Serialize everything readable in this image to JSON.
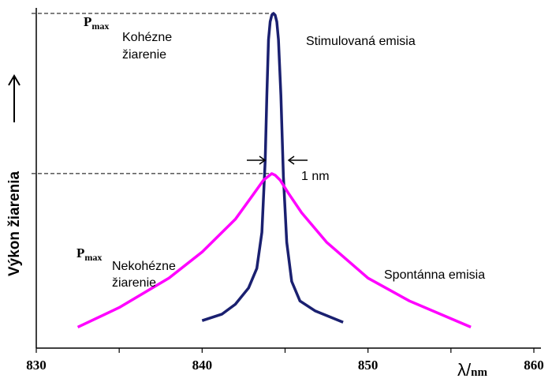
{
  "chart_data": {
    "type": "line",
    "xlim": [
      830,
      860
    ],
    "xticks": [
      "830",
      "840",
      "850",
      "860"
    ],
    "xlabel": "λ/nm",
    "ylabel": "Výkon žiarenia",
    "series": [
      {
        "name": "Stimulovaná emisia",
        "color": "#1a2070",
        "x": [
          840.0,
          841.2,
          842.0,
          842.8,
          843.3,
          843.6,
          843.8,
          843.9,
          844.0,
          844.1,
          844.2,
          844.3,
          844.4,
          844.5,
          844.6,
          844.75,
          844.9,
          845.1,
          845.4,
          845.9,
          846.8,
          848.5
        ],
        "y": [
          0.06,
          0.08,
          0.11,
          0.16,
          0.22,
          0.33,
          0.55,
          0.75,
          0.92,
          0.975,
          0.995,
          1.0,
          0.995,
          0.975,
          0.92,
          0.75,
          0.5,
          0.3,
          0.18,
          0.12,
          0.09,
          0.055
        ]
      },
      {
        "name": "Spontánna emisia",
        "color": "#ff00ff",
        "x": [
          832.5,
          835.0,
          838.0,
          840.0,
          842.0,
          843.0,
          843.7,
          844.2,
          844.4,
          844.7,
          845.2,
          846.0,
          847.5,
          850.0,
          852.5,
          856.2
        ],
        "y": [
          0.04,
          0.1,
          0.19,
          0.27,
          0.37,
          0.44,
          0.49,
          0.51,
          0.505,
          0.49,
          0.45,
          0.39,
          0.3,
          0.19,
          0.12,
          0.04
        ]
      }
    ],
    "annotations": {
      "pmax_main": "P",
      "pmax_sub": "max",
      "coherent_line1": "Kohézne",
      "coherent_line2": "žiarenie",
      "incoherent_line1": "Nekohézne",
      "incoherent_line2": "žiarenie",
      "width_label": "1 nm"
    },
    "dashed_reference_levels": [
      1.0,
      0.51
    ],
    "grid": false,
    "legend": "none"
  }
}
